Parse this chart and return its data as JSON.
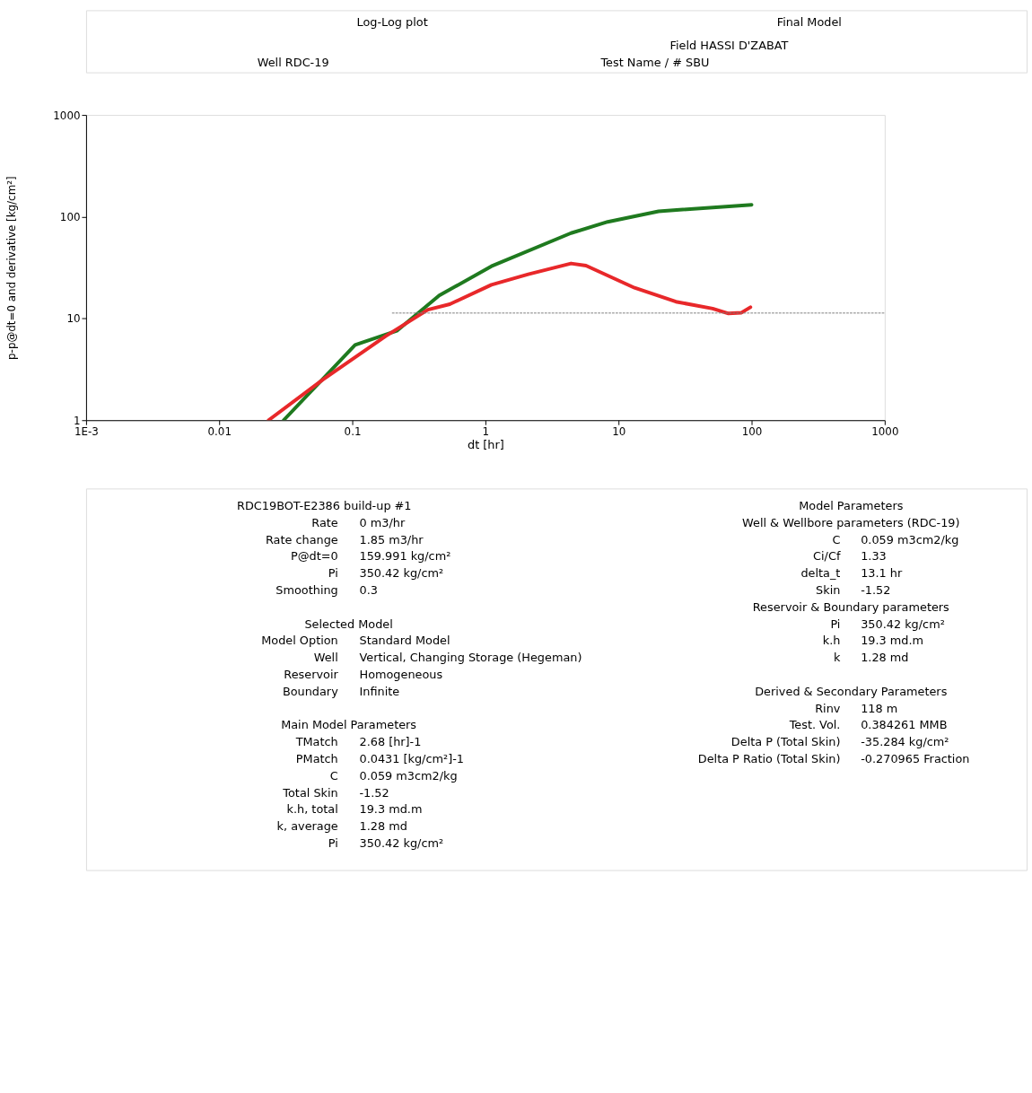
{
  "chart_data": {
    "type": "line",
    "title": "Log-Log plot",
    "subtitle": "Final Model",
    "xlabel": "dt [hr]",
    "ylabel": "p-p@dt=0 and derivative [kg/cm²]",
    "log": "xy",
    "grid": false,
    "marker": "none",
    "line_style": "solid",
    "xlim": [
      0.001,
      1000
    ],
    "ylim": [
      1,
      1000
    ],
    "xticks": [
      {
        "value": 0.001,
        "label": "1E-3"
      },
      0.01,
      0.1,
      1,
      10,
      100,
      1000
    ],
    "yticks": [
      1,
      10,
      100,
      1000
    ],
    "series": [
      {
        "color": "#1f7a1f",
        "x": [
          0.0305,
          0.105,
          0.216,
          0.45,
          1.11,
          4.4,
          8.3,
          20,
          100
        ],
        "values": [
          1.0,
          5.5,
          7.55,
          16.8,
          32.6,
          69,
          89,
          113,
          131
        ]
      },
      {
        "color": "#e8282a",
        "x": [
          0.0235,
          0.06,
          0.178,
          0.37,
          0.54,
          1.11,
          2.1,
          4.4,
          5.7,
          13.2,
          27,
          51,
          67,
          84,
          98
        ],
        "values": [
          1.0,
          2.5,
          6.7,
          12.2,
          13.8,
          21.4,
          27.2,
          34.7,
          33,
          20,
          14.6,
          12.5,
          11.2,
          11.4,
          12.9
        ]
      },
      {
        "type": "line",
        "color": "#808080",
        "line_style": "dotted",
        "x": [
          0.2,
          1000
        ],
        "values": [
          11.3,
          11.3
        ]
      }
    ],
    "annotations": [
      "Field HASSI D'ZABAT",
      "Well RDC-19",
      "Test Name / # SBU",
      "RDC19BOT-E2386 build-up #1",
      "Rate",
      "0 m3/hr",
      "Rate change",
      "1.85 m3/hr",
      "P@dt=0",
      "159.991 kg/cm²",
      "Pi",
      "350.42 kg/cm²",
      "Smoothing",
      "0.3",
      "Selected Model",
      "Model Option",
      "Standard Model",
      "Well",
      "Vertical, Changing Storage (Hegeman)",
      "Reservoir",
      "Homogeneous",
      "Boundary",
      "Infinite",
      "Main Model Parameters",
      "TMatch",
      "2.68 [hr]-1",
      "PMatch",
      "0.0431 [kg/cm²]-1",
      "C",
      "0.059 m3cm2/kg",
      "Total Skin",
      "-1.52",
      "k.h, total",
      "19.3 md.m",
      "k, average",
      "1.28 md",
      "Pi",
      "350.42 kg/cm²",
      "Model Parameters",
      "Well & Wellbore parameters (RDC-19)",
      "C",
      "0.059 m3cm2/kg",
      "Ci/Cf",
      "1.33",
      "delta_t",
      "13.1 hr",
      "Skin",
      "-1.52",
      "Reservoir & Boundary parameters",
      "Pi",
      "350.42 kg/cm²",
      "k.h",
      "19.3 md.m",
      "k",
      "1.28 md",
      "Derived & Secondary Parameters",
      "Rinv",
      "118 m",
      "Test. Vol.",
      "0.384261 MMB",
      "Delta P (Total Skin)",
      "-35.284 kg/cm²",
      "Delta P Ratio (Total Skin)",
      "-0.270965 Fraction"
    ]
  }
}
